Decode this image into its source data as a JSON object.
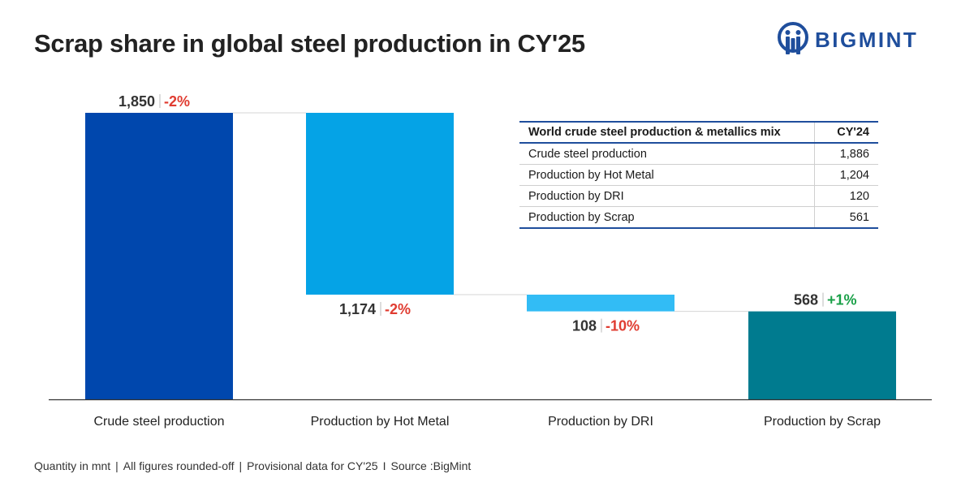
{
  "title": "Scrap share in global steel production in CY'25",
  "logo": {
    "text": "BIGMINT",
    "color": "#1f4e9c"
  },
  "chart_data": {
    "type": "bar",
    "subtype": "waterfall",
    "categories": [
      "Crude steel production",
      "Production by Hot Metal",
      "Production by DRI",
      "Production by Scrap"
    ],
    "values": [
      1850,
      1174,
      108,
      568
    ],
    "changes": [
      "-2%",
      "-2%",
      "-10%",
      "+1%"
    ],
    "value_labels": [
      "1,850",
      "1,174",
      "108",
      "568"
    ],
    "bar_colors": [
      "#0047ad",
      "#05a3e6",
      "#32bcf5",
      "#007b8f"
    ],
    "change_colors": [
      "#e03c31",
      "#e03c31",
      "#e03c31",
      "#1aa048"
    ],
    "unit": "mnt",
    "xlabel": "",
    "ylabel": "",
    "ylim": [
      0,
      1850
    ],
    "grid": false,
    "legend": "none"
  },
  "table": {
    "headers": [
      "World crude steel production & metallics mix",
      "CY'24"
    ],
    "rows": [
      [
        "Crude steel production",
        "1,886"
      ],
      [
        "Production by Hot Metal",
        "1,204"
      ],
      [
        "Production by DRI",
        "120"
      ],
      [
        "Production by Scrap",
        "561"
      ]
    ]
  },
  "footer": [
    "Quantity in mnt",
    "All figures rounded-off",
    "Provisional data for CY'25",
    "Source :BigMint"
  ]
}
